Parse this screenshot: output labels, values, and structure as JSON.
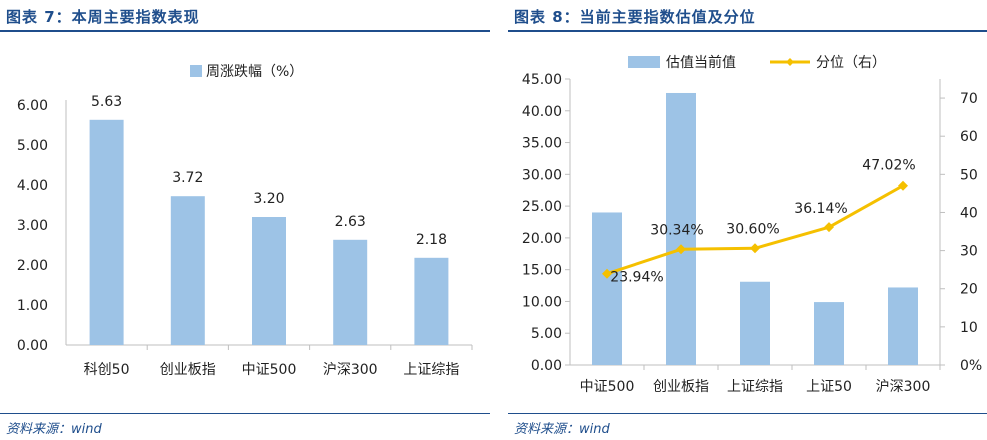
{
  "figure7": {
    "title": "图表 7：本周主要指数表现",
    "source": "资料来源：wind",
    "colors": {
      "bar": "#9dc3e6",
      "axis": "#bfbfbf",
      "text": "#222222"
    },
    "chart_data": {
      "type": "bar",
      "categories": [
        "科创50",
        "创业板指",
        "中证500",
        "沪深300",
        "上证综指"
      ],
      "series": [
        {
          "name": "周涨跌幅（%）",
          "values": [
            5.63,
            3.72,
            3.2,
            2.63,
            2.18
          ]
        }
      ],
      "data_labels": [
        "5.63",
        "3.72",
        "3.20",
        "2.63",
        "2.18"
      ],
      "y_ticks": [
        "0.00",
        "1.00",
        "2.00",
        "3.00",
        "4.00",
        "5.00",
        "6.00"
      ],
      "ylim": [
        0,
        6
      ],
      "legend_position": "top",
      "grid": false
    }
  },
  "figure8": {
    "title": "图表 8：当前主要指数估值及分位",
    "source": "资料来源：wind",
    "colors": {
      "bar": "#9dc3e6",
      "line": "#f5c000",
      "axis": "#bfbfbf",
      "text": "#222222"
    },
    "chart_data": {
      "type": "bar",
      "categories": [
        "中证500",
        "创业板指",
        "上证综指",
        "上证50",
        "沪深300"
      ],
      "series": [
        {
          "name": "估值当前值",
          "type": "bar",
          "axis": "left",
          "values": [
            24.0,
            42.8,
            13.1,
            9.9,
            12.2
          ]
        },
        {
          "name": "分位（右）",
          "type": "line",
          "axis": "right",
          "values": [
            23.94,
            30.34,
            30.6,
            36.14,
            47.02
          ],
          "labels": [
            "23.94%",
            "30.34%",
            "30.60%",
            "36.14%",
            "47.02%"
          ]
        }
      ],
      "y_left_ticks": [
        "0.00",
        "5.00",
        "10.00",
        "15.00",
        "20.00",
        "25.00",
        "30.00",
        "35.00",
        "40.00",
        "45.00"
      ],
      "y_left_lim": [
        0,
        45
      ],
      "y_right_ticks": [
        "0%",
        "10",
        "20",
        "30",
        "40",
        "50",
        "60",
        "70"
      ],
      "y_right_lim": [
        0,
        75
      ],
      "legend_position": "top",
      "grid": false
    }
  }
}
